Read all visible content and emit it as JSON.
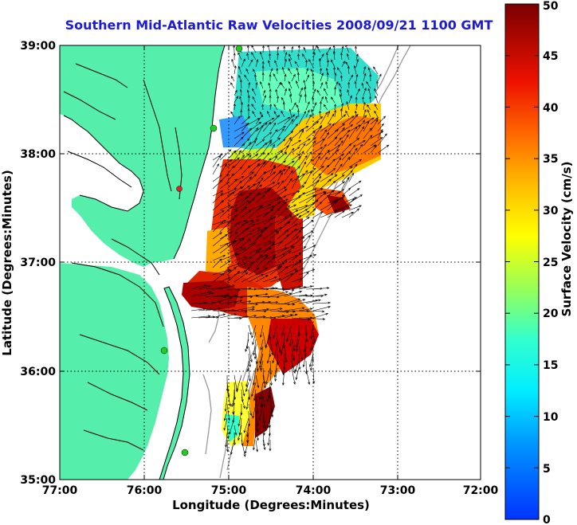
{
  "title": "Southern Mid-Atlantic Raw Velocities 2008/09/21 1100 GMT",
  "axes": {
    "xlabel": "Longitude (Degrees:Minutes)",
    "ylabel": "Latitude (Degrees:Minutes)",
    "x_ticks": [
      "77:00",
      "76:00",
      "75:00",
      "74:00",
      "73:00",
      "72:00"
    ],
    "y_ticks": [
      "39:00",
      "38:00",
      "37:00",
      "36:00",
      "35:00"
    ],
    "x_range": [
      -77,
      -72
    ],
    "y_range": [
      35,
      39
    ]
  },
  "colorbar": {
    "label": "Surface Velocity (cm/s)",
    "ticks": [
      "0",
      "5",
      "10",
      "15",
      "20",
      "25",
      "30",
      "35",
      "40",
      "45",
      "50"
    ],
    "range": [
      0,
      50
    ]
  },
  "colors": {
    "land": "#55eeaa",
    "title": "#1c1cd8",
    "coast": "#000000",
    "bathymetry": "#9a9a9a",
    "station_green": "#22cc22",
    "station_red": "#dd2222"
  }
}
